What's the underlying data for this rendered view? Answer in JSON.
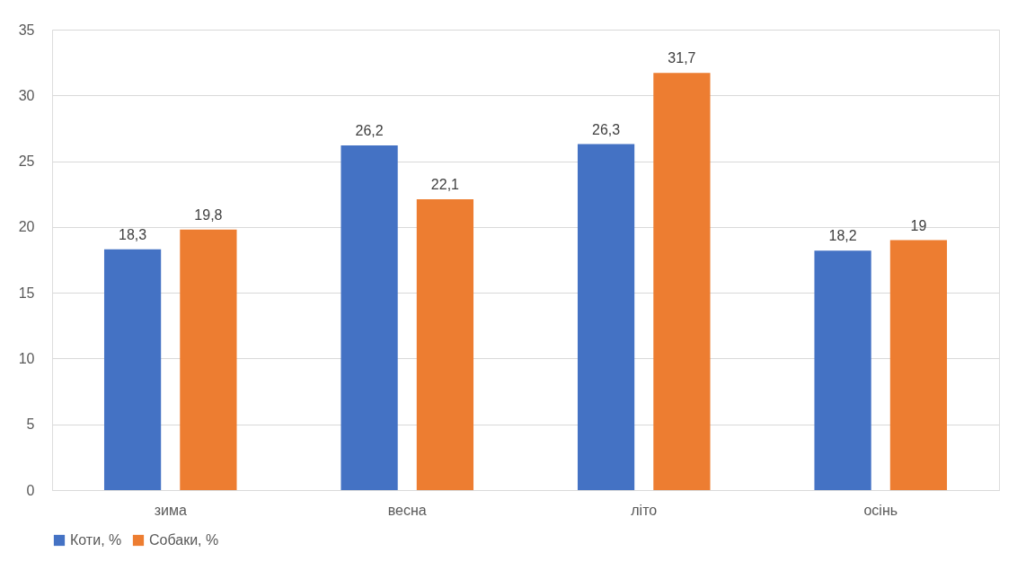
{
  "chart_data": {
    "type": "bar",
    "categories": [
      "зима",
      "весна",
      "літо",
      "осінь"
    ],
    "series": [
      {
        "name": "Коти, %",
        "color": "#4472c4",
        "values": [
          18.3,
          26.2,
          26.3,
          18.2
        ],
        "value_labels": [
          "18,3",
          "26,2",
          "26,3",
          "18,2"
        ]
      },
      {
        "name": "Собаки, %",
        "color": "#ed7d31",
        "values": [
          19.8,
          22.1,
          31.7,
          19
        ],
        "value_labels": [
          "19,8",
          "22,1",
          "31,7",
          "19"
        ]
      }
    ],
    "ylim": [
      0,
      35
    ],
    "yticks": [
      0,
      5,
      10,
      15,
      20,
      25,
      30,
      35
    ],
    "grid": "y",
    "legend": "bottom"
  }
}
